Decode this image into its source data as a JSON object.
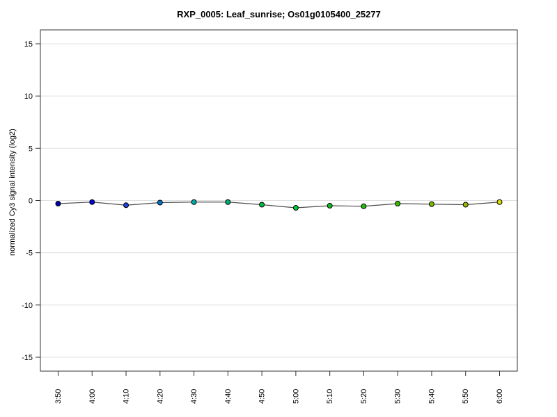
{
  "window": {
    "background": "#ffffff"
  },
  "chart_data": {
    "type": "line",
    "title": "RXP_0005: Leaf_sunrise; Os01g0105400_25277",
    "xlabel": "",
    "ylabel": "normalized Cy3 signal intensity (log2)",
    "x": [
      "3:50",
      "4:00",
      "4:10",
      "4:20",
      "4:30",
      "4:40",
      "4:50",
      "5:00",
      "5:10",
      "5:20",
      "5:30",
      "5:40",
      "5:50",
      "6:00"
    ],
    "values": [
      -0.3,
      -0.15,
      -0.45,
      -0.2,
      -0.15,
      -0.15,
      -0.4,
      -0.7,
      -0.5,
      -0.55,
      -0.3,
      -0.35,
      -0.4,
      -0.15
    ],
    "point_colors": [
      "#0000AA",
      "#0000DD",
      "#2244DD",
      "#0077CC",
      "#00AAAA",
      "#00AA77",
      "#00BB44",
      "#00CC33",
      "#11BB22",
      "#22BB11",
      "#33BB00",
      "#77BB00",
      "#99BB00",
      "#DDDD00"
    ],
    "yticks": [
      15,
      10,
      5,
      0,
      -5,
      -10,
      -15
    ],
    "ylim": [
      -16.33,
      16.33
    ],
    "grid": "horizontal",
    "legend": "none",
    "line_color": "#4d4d4d",
    "grid_color": "#e0e0e0",
    "axis_color": "#333333",
    "point_outline_color": "#000000",
    "tick_label_color": "#000000"
  }
}
